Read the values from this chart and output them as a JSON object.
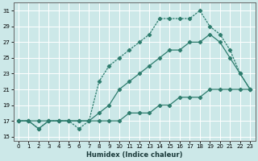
{
  "xlabel": "Humidex (Indice chaleur)",
  "bg_color": "#cce8e8",
  "grid_color": "#ffffff",
  "line_color": "#2e7d6e",
  "xlim": [
    -0.5,
    23.5
  ],
  "ylim": [
    14.5,
    32
  ],
  "xticks": [
    0,
    1,
    2,
    3,
    4,
    5,
    6,
    7,
    8,
    9,
    10,
    11,
    12,
    13,
    14,
    15,
    16,
    17,
    18,
    19,
    20,
    21,
    22,
    23
  ],
  "yticks": [
    15,
    17,
    19,
    21,
    23,
    25,
    27,
    29,
    31
  ],
  "curve_bottom_x": [
    0,
    1,
    2,
    3,
    4,
    5,
    6,
    7,
    8,
    9,
    10,
    11,
    12,
    13,
    14,
    15,
    16,
    17,
    18,
    19,
    20,
    21,
    22,
    23
  ],
  "curve_bottom_y": [
    17,
    17,
    17,
    17,
    17,
    17,
    17,
    17,
    17,
    17,
    17,
    18,
    18,
    18,
    19,
    19,
    20,
    20,
    20,
    21,
    21,
    21,
    21,
    21
  ],
  "curve_mid_x": [
    0,
    1,
    2,
    3,
    4,
    5,
    6,
    7,
    8,
    9,
    10,
    11,
    12,
    13,
    14,
    15,
    16,
    17,
    18,
    19,
    20,
    21,
    22,
    23
  ],
  "curve_mid_y": [
    17,
    17,
    16,
    17,
    17,
    17,
    17,
    17,
    18,
    19,
    21,
    22,
    23,
    24,
    25,
    26,
    26,
    27,
    27,
    28,
    27,
    25,
    23,
    21
  ],
  "curve_top_x": [
    0,
    1,
    2,
    3,
    4,
    5,
    6,
    7,
    8,
    9,
    10,
    11,
    12,
    13,
    14,
    15,
    16,
    17,
    18,
    19,
    20,
    21,
    22,
    23
  ],
  "curve_top_y": [
    17,
    17,
    16,
    17,
    17,
    17,
    16,
    17,
    22,
    24,
    25,
    26,
    27,
    28,
    30,
    30,
    30,
    30,
    31,
    29,
    28,
    26,
    23,
    21
  ]
}
